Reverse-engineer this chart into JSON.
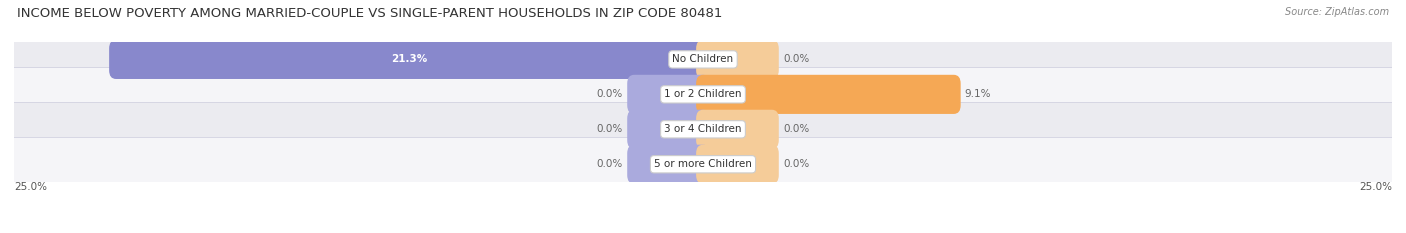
{
  "title": "INCOME BELOW POVERTY AMONG MARRIED-COUPLE VS SINGLE-PARENT HOUSEHOLDS IN ZIP CODE 80481",
  "source": "Source: ZipAtlas.com",
  "categories": [
    "No Children",
    "1 or 2 Children",
    "3 or 4 Children",
    "5 or more Children"
  ],
  "married_values": [
    21.3,
    0.0,
    0.0,
    0.0
  ],
  "single_values": [
    0.0,
    9.1,
    0.0,
    0.0
  ],
  "max_val": 25.0,
  "married_color": "#8888cc",
  "single_color": "#f5a855",
  "single_color_light": "#f5cc99",
  "married_color_light": "#aaaadd",
  "title_fontsize": 9.5,
  "label_fontsize": 7.5,
  "value_fontsize": 7.5,
  "legend_fontsize": 8,
  "axis_label_fontsize": 7.5,
  "background_color": "#ffffff",
  "row_bg_color_odd": "#ebebf0",
  "row_bg_color_even": "#f5f5f8",
  "min_bar_width": 1.8,
  "stub_bar_width": 2.5
}
